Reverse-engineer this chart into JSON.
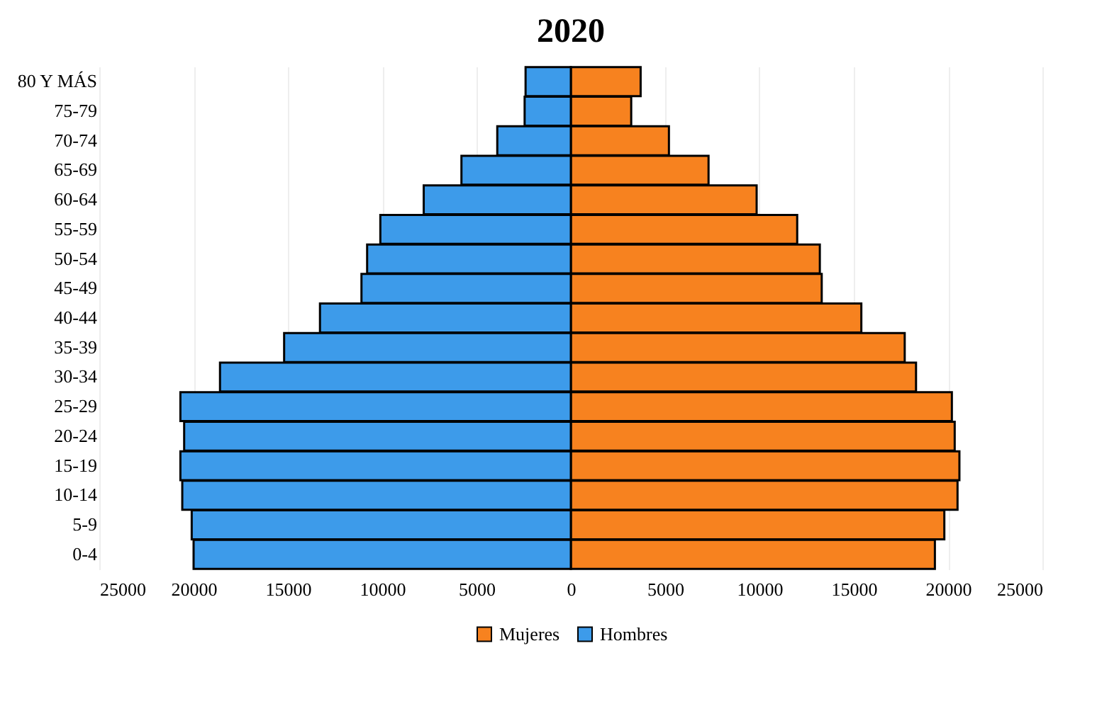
{
  "chart_data": {
    "type": "bar",
    "orientation": "horizontal",
    "title": "2020",
    "categories": [
      "80 Y MÁS",
      "75-79",
      "70-74",
      "65-69",
      "60-64",
      "55-59",
      "50-54",
      "45-49",
      "40-44",
      "35-39",
      "30-34",
      "25-29",
      "20-24",
      "15-19",
      "10-14",
      "5-9",
      "0-4"
    ],
    "series": [
      {
        "name": "Mujeres",
        "color": "#f7821f",
        "values": [
          3700,
          3200,
          5200,
          7300,
          9850,
          12000,
          13200,
          13300,
          15400,
          17700,
          18300,
          20200,
          20350,
          20600,
          20500,
          19800,
          19300
        ]
      },
      {
        "name": "Hombres",
        "color": "#3d9bea",
        "values": [
          -2400,
          -2450,
          -3900,
          -5800,
          -7800,
          -10100,
          -10800,
          -11100,
          -13300,
          -15200,
          -18600,
          -20700,
          -20500,
          -20700,
          -20600,
          -20100,
          -20000
        ]
      }
    ],
    "xlim": [
      -25000,
      25000
    ],
    "xticks": [
      {
        "value": -25000,
        "label": "25000"
      },
      {
        "value": -20000,
        "label": "20000"
      },
      {
        "value": -15000,
        "label": "15000"
      },
      {
        "value": -10000,
        "label": "10000"
      },
      {
        "value": -5000,
        "label": "5000"
      },
      0,
      5000,
      10000,
      15000,
      20000,
      25000
    ],
    "grid": "x",
    "legend": "bottom",
    "stacked": true
  }
}
